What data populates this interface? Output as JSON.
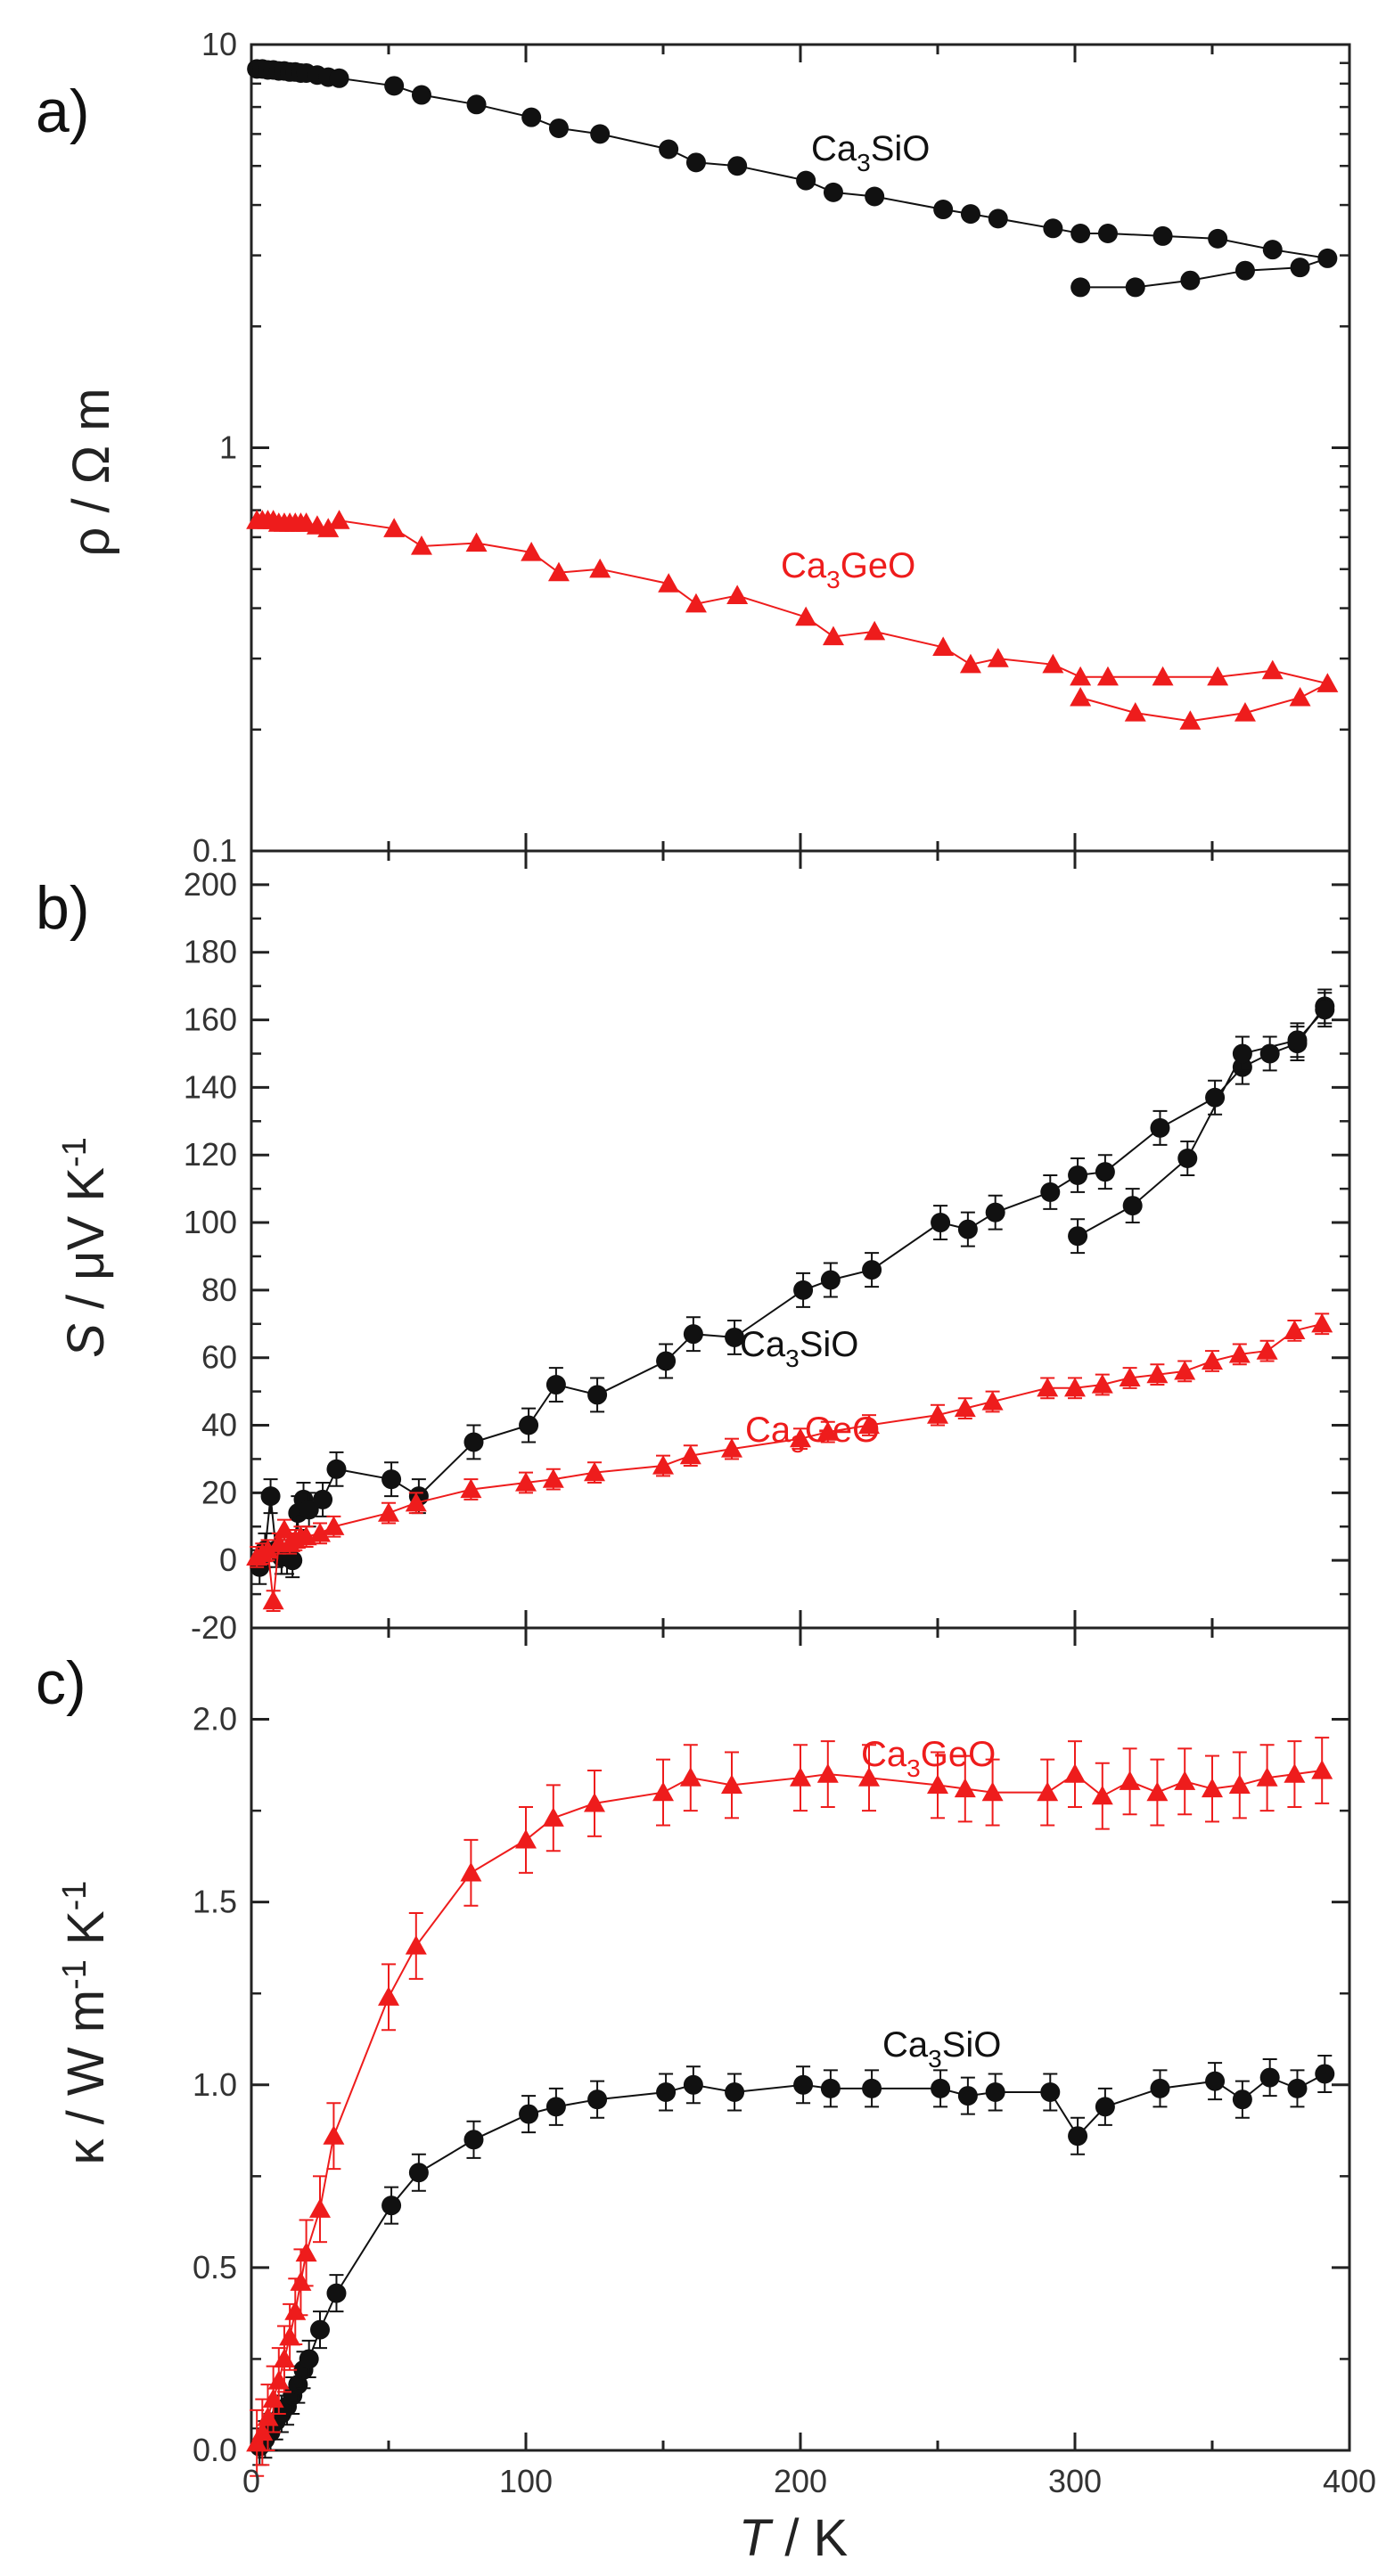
{
  "colors": {
    "Ca3SiO": "#111111",
    "Ca3GeO": "#ee1c1c",
    "axis": "#222222"
  },
  "x_axis": {
    "label_italic": "T",
    "label_rest": " / K",
    "ticks": [
      0,
      100,
      200,
      300,
      400
    ],
    "tick_labels": [
      "0",
      "100",
      "200",
      "300",
      "400"
    ]
  },
  "panels": [
    {
      "letter": "a)",
      "ylabel": "ρ / Ω m",
      "tick_labels": [
        "10",
        "1",
        "0.1"
      ]
    },
    {
      "letter": "b)",
      "ylabel": "S / μV K-1",
      "tick_labels": [
        "-20",
        "0",
        "20",
        "40",
        "60",
        "80",
        "100",
        "120",
        "140",
        "160",
        "180",
        "200"
      ]
    },
    {
      "letter": "c)",
      "ylabel": "κ / W m-1 K-1",
      "tick_labels": [
        "0.0",
        "0.5",
        "1.0",
        "1.5",
        "2.0"
      ]
    }
  ],
  "series_labels": {
    "a_si": "Ca3SiO",
    "a_ge": "Ca3GeO",
    "b_si": "Ca3SiO",
    "b_ge": "Ca3GeO",
    "c_si": "Ca3SiO",
    "c_ge": "Ca3GeO"
  },
  "chart_data": [
    {
      "type": "line",
      "panel": "a)",
      "xlabel": "T / K",
      "ylabel": "ρ / Ω m",
      "yscale": "log",
      "xlim": [
        0,
        400
      ],
      "ylim": [
        0.1,
        10
      ],
      "series": [
        {
          "name": "Ca3SiO",
          "marker": "circle",
          "x": [
            2,
            4,
            6,
            8,
            10,
            12,
            14,
            16,
            18,
            20,
            24,
            28,
            32,
            52,
            62,
            82,
            102,
            112,
            127,
            152,
            162,
            177,
            202,
            212,
            227,
            252,
            262,
            272,
            292,
            302,
            312,
            332,
            352,
            372,
            392,
            382,
            362,
            342,
            322,
            302
          ],
          "y": [
            8.7,
            8.7,
            8.65,
            8.65,
            8.6,
            8.6,
            8.55,
            8.55,
            8.5,
            8.5,
            8.4,
            8.3,
            8.25,
            7.9,
            7.5,
            7.1,
            6.6,
            6.2,
            6.0,
            5.5,
            5.1,
            5.0,
            4.6,
            4.3,
            4.2,
            3.9,
            3.8,
            3.7,
            3.5,
            3.4,
            3.4,
            3.35,
            3.3,
            3.1,
            2.95,
            2.8,
            2.75,
            2.6,
            2.5,
            2.5
          ]
        },
        {
          "name": "Ca3GeO",
          "marker": "triangle",
          "x": [
            2,
            4,
            6,
            8,
            10,
            12,
            14,
            16,
            18,
            20,
            24,
            28,
            32,
            52,
            62,
            82,
            102,
            112,
            127,
            152,
            162,
            177,
            202,
            212,
            227,
            252,
            262,
            272,
            292,
            302,
            312,
            332,
            352,
            372,
            392,
            382,
            362,
            342,
            322,
            302
          ],
          "y": [
            0.66,
            0.66,
            0.66,
            0.66,
            0.65,
            0.65,
            0.65,
            0.65,
            0.65,
            0.65,
            0.64,
            0.63,
            0.66,
            0.63,
            0.57,
            0.58,
            0.55,
            0.49,
            0.5,
            0.46,
            0.41,
            0.43,
            0.38,
            0.34,
            0.35,
            0.32,
            0.29,
            0.3,
            0.29,
            0.27,
            0.27,
            0.27,
            0.27,
            0.28,
            0.26,
            0.24,
            0.22,
            0.21,
            0.22,
            0.24
          ]
        }
      ]
    },
    {
      "type": "line",
      "panel": "b)",
      "xlabel": "T / K",
      "ylabel": "S / μV K-1",
      "xlim": [
        0,
        400
      ],
      "ylim": [
        -20,
        210
      ],
      "series": [
        {
          "name": "Ca3SiO",
          "marker": "circle",
          "x": [
            3,
            5,
            7,
            9,
            11,
            13,
            15,
            17,
            19,
            21,
            26,
            31,
            51,
            61,
            81,
            101,
            111,
            126,
            151,
            161,
            176,
            201,
            211,
            226,
            251,
            261,
            271,
            291,
            301,
            311,
            331,
            351,
            361,
            371,
            381,
            391,
            391,
            381,
            361,
            341,
            321,
            301
          ],
          "y": [
            -2,
            3,
            19,
            3,
            1,
            1,
            0,
            14,
            18,
            15,
            18,
            27,
            24,
            19,
            35,
            40,
            52,
            49,
            59,
            67,
            66,
            80,
            83,
            86,
            100,
            98,
            103,
            109,
            114,
            115,
            128,
            137,
            146,
            150,
            153,
            164,
            163,
            154,
            150,
            119,
            105,
            96
          ],
          "err": 5
        },
        {
          "name": "Ca3GeO",
          "marker": "triangle",
          "x": [
            2,
            4,
            6,
            8,
            10,
            12,
            14,
            16,
            18,
            20,
            25,
            30,
            50,
            60,
            80,
            100,
            110,
            125,
            150,
            160,
            175,
            200,
            210,
            225,
            250,
            260,
            270,
            290,
            300,
            310,
            320,
            330,
            340,
            350,
            360,
            370,
            380,
            390
          ],
          "y": [
            1,
            2,
            3,
            -12,
            5,
            9,
            5,
            6,
            7,
            7,
            8,
            10,
            14,
            17,
            21,
            23,
            24,
            26,
            28,
            31,
            33,
            36,
            38,
            40,
            43,
            45,
            47,
            51,
            51,
            52,
            54,
            55,
            56,
            59,
            61,
            62,
            68,
            70
          ],
          "err": 3
        }
      ]
    },
    {
      "type": "line",
      "panel": "c)",
      "xlabel": "T / K",
      "ylabel": "κ / W m-1 K-1",
      "xlim": [
        0,
        400
      ],
      "ylim": [
        0,
        2.25
      ],
      "series": [
        {
          "name": "Ca3SiO",
          "marker": "circle",
          "x": [
            3,
            5,
            7,
            9,
            11,
            13,
            15,
            17,
            19,
            21,
            25,
            31,
            51,
            61,
            81,
            101,
            111,
            126,
            151,
            161,
            176,
            201,
            211,
            226,
            251,
            261,
            271,
            291,
            301,
            311,
            331,
            351,
            361,
            371,
            381,
            391
          ],
          "y": [
            0.01,
            0.03,
            0.05,
            0.08,
            0.1,
            0.12,
            0.15,
            0.18,
            0.22,
            0.25,
            0.33,
            0.43,
            0.67,
            0.76,
            0.85,
            0.92,
            0.94,
            0.96,
            0.98,
            1.0,
            0.98,
            1.0,
            0.99,
            0.99,
            0.99,
            0.97,
            0.98,
            0.98,
            0.86,
            0.94,
            0.99,
            1.01,
            0.96,
            1.02,
            0.99,
            1.03
          ],
          "err": 0.05
        },
        {
          "name": "Ca3GeO",
          "marker": "triangle",
          "x": [
            2,
            4,
            6,
            8,
            10,
            12,
            14,
            16,
            18,
            20,
            25,
            30,
            50,
            60,
            80,
            100,
            110,
            125,
            150,
            160,
            175,
            200,
            210,
            225,
            250,
            260,
            270,
            290,
            300,
            310,
            320,
            330,
            340,
            350,
            360,
            370,
            380,
            390
          ],
          "y": [
            0.02,
            0.05,
            0.09,
            0.14,
            0.19,
            0.25,
            0.31,
            0.38,
            0.46,
            0.54,
            0.66,
            0.86,
            1.24,
            1.38,
            1.58,
            1.67,
            1.73,
            1.77,
            1.8,
            1.84,
            1.82,
            1.84,
            1.85,
            1.84,
            1.82,
            1.81,
            1.8,
            1.8,
            1.85,
            1.79,
            1.83,
            1.8,
            1.83,
            1.81,
            1.82,
            1.84,
            1.85,
            1.86
          ],
          "err": 0.09
        }
      ]
    }
  ]
}
